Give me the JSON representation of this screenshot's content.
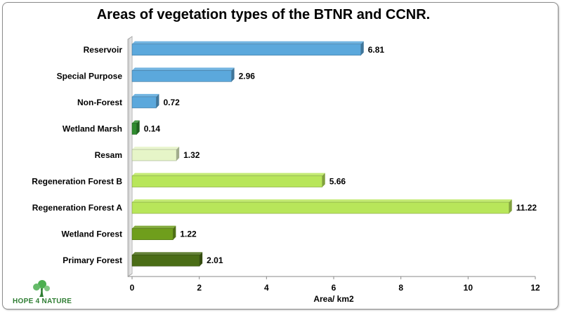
{
  "chart_data": {
    "type": "bar",
    "orientation": "horizontal",
    "title": "Areas of vegetation types of the BTNR and CCNR.",
    "xlabel": "Area/ km2",
    "ylabel": "",
    "xlim": [
      0,
      12
    ],
    "xticks": [
      0,
      2,
      4,
      6,
      8,
      10,
      12
    ],
    "grid": false,
    "categories": [
      "Reservoir",
      "Special Purpose",
      "Non-Forest",
      "Wetland Marsh",
      "Resam",
      "Regeneration Forest B",
      "Regeneration Forest A",
      "Wetland Forest",
      "Primary Forest"
    ],
    "values": [
      6.81,
      2.96,
      0.72,
      0.14,
      1.32,
      5.66,
      11.22,
      1.22,
      2.01
    ],
    "value_labels": [
      "6.81",
      "2.96",
      "0.72",
      "0.14",
      "1.32",
      "5.66",
      "11.22",
      "1.22",
      "2.01"
    ],
    "colors": [
      "#5ba8dc",
      "#5ba8dc",
      "#5ba8dc",
      "#2e8b2e",
      "#e6f5c8",
      "#b8e65a",
      "#b8e65a",
      "#6f9e1c",
      "#4a6d16"
    ]
  },
  "logo": {
    "text": "HOPE 4 NATURE"
  }
}
